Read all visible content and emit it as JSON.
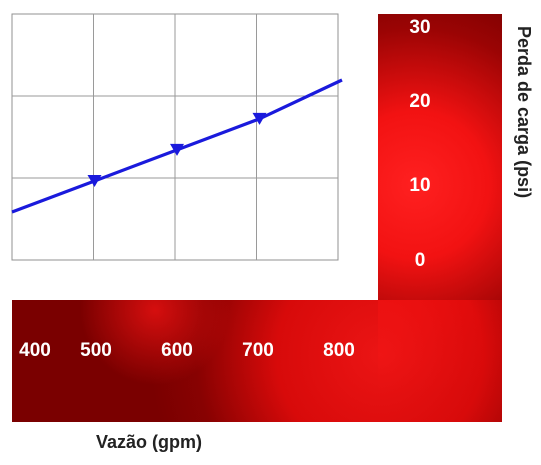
{
  "chart_data": {
    "type": "line",
    "xlabel": "Vazão (gpm)",
    "ylabel": "Perda de carga (psi)",
    "x_ticks": [
      400,
      500,
      600,
      700,
      800
    ],
    "y_ticks": [
      0,
      10,
      20,
      30
    ],
    "xlim": [
      400,
      800
    ],
    "ylim": [
      0,
      30
    ],
    "grid": true,
    "series": [
      {
        "x": [
          400,
          500,
          600,
          700,
          800
        ],
        "y": [
          5,
          9,
          13,
          17,
          22
        ],
        "marker_x": [
          500,
          600,
          700
        ],
        "color": "#1a1adc",
        "marker": "triangle-down"
      }
    ],
    "colors": {
      "frame_dark": "#7a0000",
      "glow_bright": "#ff1a1a",
      "tick_text": "#ffffff",
      "line": "#1a1adc"
    }
  }
}
